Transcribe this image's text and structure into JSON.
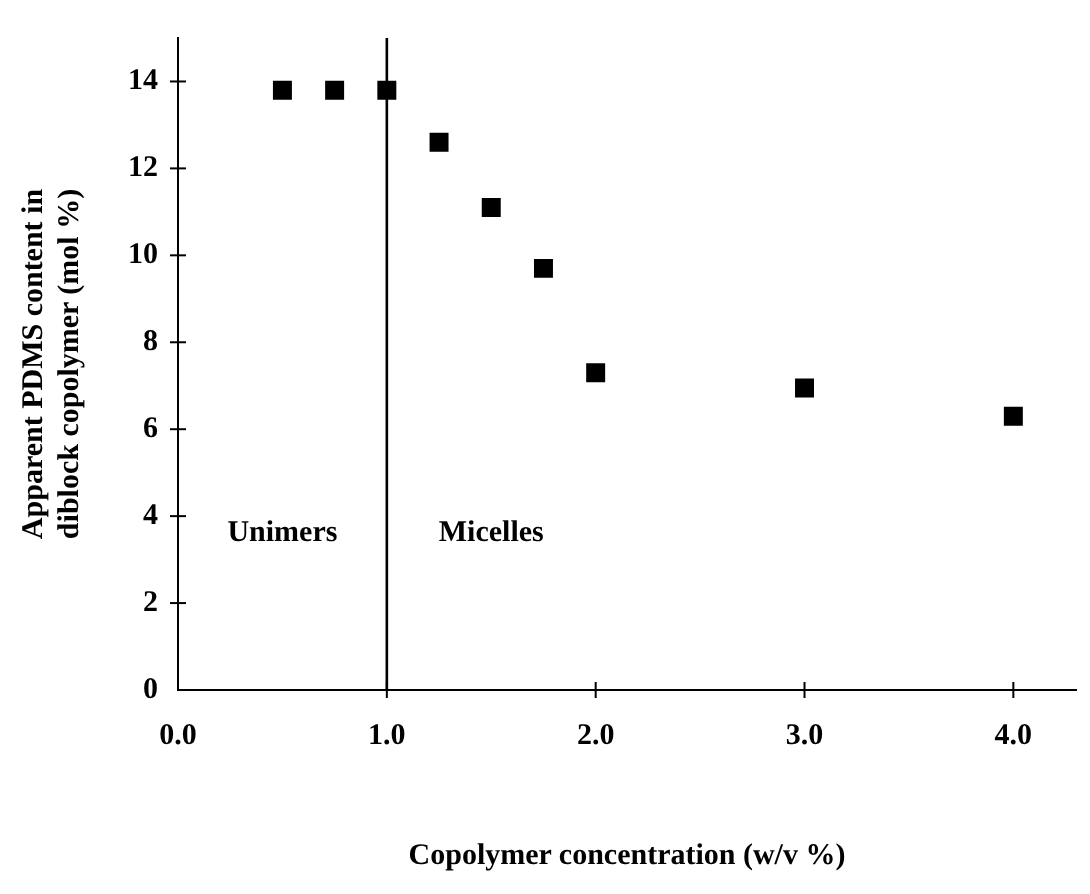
{
  "chart_data": {
    "type": "scatter",
    "xlabel": "Copolymer concentration (w/v %)",
    "ylabel": "Apparent PDMS content in\ndiblock copolymer (mol %)",
    "x": [
      0.5,
      0.75,
      1.0,
      1.25,
      1.5,
      1.75,
      2.0,
      3.0,
      4.0
    ],
    "values": [
      13.8,
      13.8,
      13.8,
      12.6,
      11.1,
      9.7,
      7.3,
      6.95,
      6.3
    ],
    "color": "#000000",
    "marker": "square",
    "xlim": [
      0,
      4.3
    ],
    "xticks": [
      {
        "value": 0,
        "label": "0.0"
      },
      {
        "value": 1,
        "label": "1.0"
      },
      {
        "value": 2,
        "label": "2.0"
      },
      {
        "value": 3,
        "label": "3.0"
      },
      {
        "value": 4,
        "label": "4.0"
      }
    ],
    "ylim": [
      0,
      15
    ],
    "yticks": [
      0,
      2,
      4,
      6,
      8,
      10,
      12,
      14
    ],
    "ref_lines": [
      {
        "axis": "x",
        "value": 1,
        "color": "#000000"
      }
    ],
    "annotations": [
      "Unimers",
      "Micelles"
    ],
    "grid": false,
    "legend": false
  }
}
